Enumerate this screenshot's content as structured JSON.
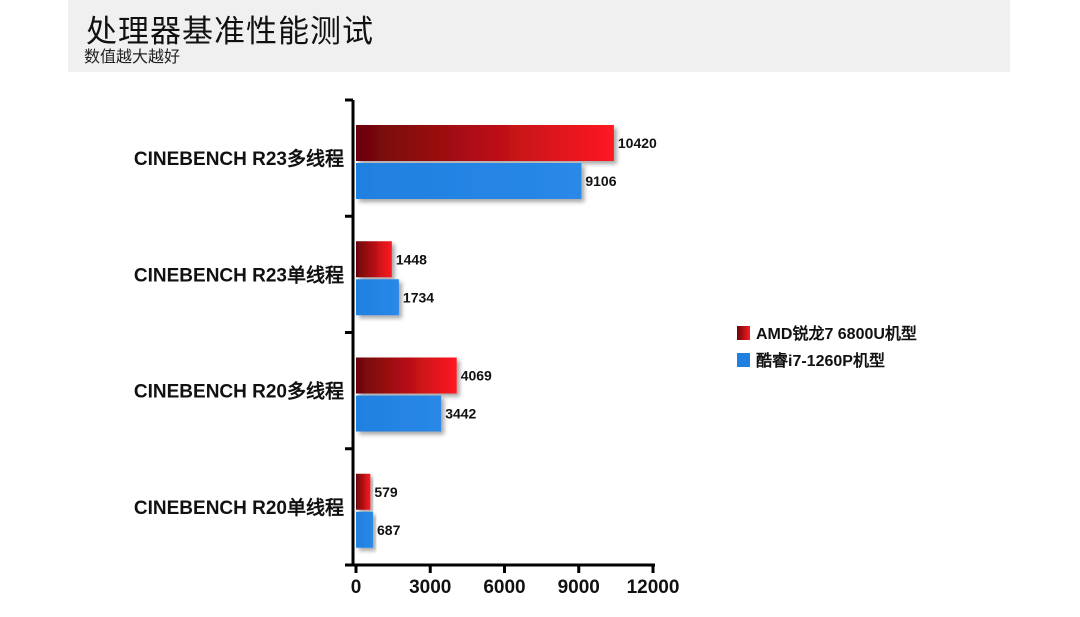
{
  "header": {
    "title": "处理器基准性能测试",
    "subtitle": "数值越大越好"
  },
  "chart_data": {
    "type": "bar",
    "orientation": "horizontal",
    "categories": [
      "CINEBENCH R23多线程",
      "CINEBENCH R23单线程",
      "CINEBENCH R20多线程",
      "CINEBENCH R20单线程"
    ],
    "series": [
      {
        "name": "AMD锐龙7 6800U机型",
        "values": [
          10420,
          1448,
          4069,
          579
        ],
        "color": "#e8101a"
      },
      {
        "name": "酷睿i7-1260P机型",
        "values": [
          9106,
          1734,
          3442,
          687
        ],
        "color": "#1f80e0"
      }
    ],
    "xlim": [
      0,
      12000
    ],
    "xticks": [
      "0",
      "3000",
      "6000",
      "9000",
      "12000"
    ],
    "grid": false,
    "legend": "right"
  }
}
